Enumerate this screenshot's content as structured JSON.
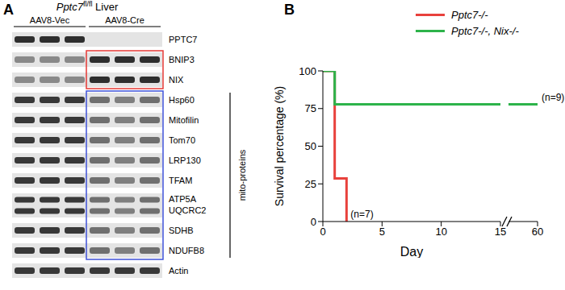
{
  "panel_a": {
    "label": "A",
    "title": {
      "gene": "Pptc7",
      "superscript": "fl/fl",
      "tissue": "Liver"
    },
    "lanes": [
      "AAV8-Vec",
      "AAV8-Cre"
    ],
    "strips": [
      [
        "PPTC7"
      ],
      [
        "BNIP3"
      ],
      [
        "NIX"
      ],
      [
        "Hsp60"
      ],
      [
        "Mitofilin"
      ],
      [
        "Tom70"
      ],
      [
        "LRP130"
      ],
      [
        "TFAM"
      ],
      [
        "ATP5A",
        "UQCRC2"
      ],
      [
        "SDHB"
      ],
      [
        "NDUFB8"
      ],
      [
        "Actin"
      ]
    ],
    "bracket": "mito-proteins"
  },
  "chart_data": {
    "panel": "B",
    "type": "line",
    "line_style": "step",
    "x_label": "Day",
    "y_label": "Survival percentage (%)",
    "xlim": [
      0,
      60
    ],
    "xticks": [
      0,
      5,
      10,
      15,
      60
    ],
    "ylim": [
      0,
      100
    ],
    "yticks": [
      0,
      25,
      50,
      75,
      100
    ],
    "legend": "upper right",
    "series": [
      {
        "name": "Pptc7-/-",
        "color": "#e8413c",
        "x": [
          0,
          1,
          2
        ],
        "values": [
          100,
          28.6,
          0
        ],
        "label": "(n=7)"
      },
      {
        "name": "Pptc7-/-, Nix-/-",
        "color": "#2db34a",
        "x": [
          0,
          1,
          60
        ],
        "values": [
          100,
          77.8,
          77.8
        ],
        "label": "(n=9)"
      }
    ]
  }
}
